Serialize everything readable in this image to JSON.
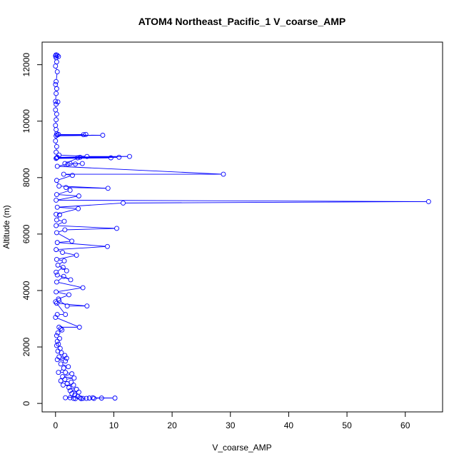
{
  "chart_data": {
    "type": "line",
    "title": "ATOM4 Northeast_Pacific_1 V_coarse_AMP",
    "xlabel": "V_coarse_AMP",
    "ylabel": "Altitude (m)",
    "xlim": [
      -2.3,
      66.4
    ],
    "ylim": [
      -300,
      12800
    ],
    "x_ticks": [
      0,
      10,
      20,
      30,
      40,
      50,
      60
    ],
    "y_ticks": [
      0,
      2000,
      4000,
      6000,
      8000,
      10000,
      12000
    ],
    "series": [
      {
        "color": "#0000ff",
        "marker": "open-circle",
        "points": [
          [
            0.1,
            12350
          ],
          [
            0.3,
            12330
          ],
          [
            0.0,
            12310
          ],
          [
            0.5,
            12290
          ],
          [
            0.1,
            12250
          ],
          [
            0.2,
            12100
          ],
          [
            0.0,
            11950
          ],
          [
            0.3,
            11750
          ],
          [
            0.1,
            11400
          ],
          [
            0.0,
            11300
          ],
          [
            0.2,
            11150
          ],
          [
            0.1,
            10980
          ],
          [
            0.0,
            10700
          ],
          [
            0.4,
            10680
          ],
          [
            0.1,
            10600
          ],
          [
            0.0,
            10400
          ],
          [
            0.2,
            10250
          ],
          [
            0.1,
            10050
          ],
          [
            0.0,
            9850
          ],
          [
            0.1,
            9700
          ],
          [
            0.2,
            9550
          ],
          [
            0.5,
            9530
          ],
          [
            4.8,
            9520
          ],
          [
            5.2,
            9530
          ],
          [
            0.3,
            9510
          ],
          [
            8.1,
            9500
          ],
          [
            0.1,
            9480
          ],
          [
            0.0,
            9300
          ],
          [
            0.2,
            9100
          ],
          [
            0.1,
            8900
          ],
          [
            0.6,
            8800
          ],
          [
            5.4,
            8750
          ],
          [
            12.7,
            8750
          ],
          [
            0.3,
            8720
          ],
          [
            10.9,
            8720
          ],
          [
            3.8,
            8700
          ],
          [
            0.2,
            8700
          ],
          [
            9.5,
            8700
          ],
          [
            0.1,
            8680
          ],
          [
            4.2,
            8720
          ],
          [
            1.6,
            8500
          ],
          [
            2.5,
            8500
          ],
          [
            3.4,
            8480
          ],
          [
            4.6,
            8500
          ],
          [
            2.1,
            8480
          ],
          [
            0.3,
            8400
          ],
          [
            28.8,
            8120
          ],
          [
            1.4,
            8120
          ],
          [
            2.9,
            8080
          ],
          [
            0.2,
            7900
          ],
          [
            0.6,
            7700
          ],
          [
            9.0,
            7620
          ],
          [
            1.8,
            7650
          ],
          [
            2.5,
            7550
          ],
          [
            0.2,
            7400
          ],
          [
            4.0,
            7350
          ],
          [
            0.1,
            7200
          ],
          [
            64.0,
            7150
          ],
          [
            11.6,
            7100
          ],
          [
            0.3,
            6950
          ],
          [
            3.9,
            6900
          ],
          [
            0.1,
            6700
          ],
          [
            0.7,
            6680
          ],
          [
            0.2,
            6500
          ],
          [
            1.5,
            6450
          ],
          [
            0.1,
            6300
          ],
          [
            10.5,
            6200
          ],
          [
            1.6,
            6150
          ],
          [
            0.2,
            6050
          ],
          [
            2.8,
            5750
          ],
          [
            0.3,
            5700
          ],
          [
            8.9,
            5560
          ],
          [
            0.1,
            5450
          ],
          [
            1.2,
            5350
          ],
          [
            3.6,
            5250
          ],
          [
            0.2,
            5100
          ],
          [
            1.5,
            5050
          ],
          [
            0.4,
            4900
          ],
          [
            1.9,
            4700
          ],
          [
            1.3,
            4820
          ],
          [
            0.1,
            4650
          ],
          [
            0.3,
            4550
          ],
          [
            2.6,
            4380
          ],
          [
            1.4,
            4500
          ],
          [
            0.2,
            4300
          ],
          [
            4.7,
            4100
          ],
          [
            0.1,
            3950
          ],
          [
            2.3,
            3850
          ],
          [
            0.5,
            3700
          ],
          [
            0.2,
            3550
          ],
          [
            5.4,
            3450
          ],
          [
            2.0,
            3450
          ],
          [
            0.6,
            3650
          ],
          [
            0.0,
            3600
          ],
          [
            1.7,
            3150
          ],
          [
            0.3,
            3150
          ],
          [
            0.0,
            3050
          ],
          [
            4.1,
            2700
          ],
          [
            0.6,
            2700
          ],
          [
            0.9,
            2650
          ],
          [
            1.1,
            2600
          ],
          [
            0.4,
            2500
          ],
          [
            0.2,
            2400
          ],
          [
            0.7,
            2300
          ],
          [
            0.3,
            2200
          ],
          [
            0.5,
            2100
          ],
          [
            0.2,
            2050
          ],
          [
            0.8,
            1950
          ],
          [
            0.4,
            1850
          ],
          [
            1.0,
            1800
          ],
          [
            1.6,
            1700
          ],
          [
            0.6,
            1650
          ],
          [
            1.9,
            1600
          ],
          [
            0.3,
            1550
          ],
          [
            1.7,
            1500
          ],
          [
            0.9,
            1400
          ],
          [
            2.2,
            1300
          ],
          [
            1.4,
            1250
          ],
          [
            0.5,
            1100
          ],
          [
            1.7,
            1100
          ],
          [
            2.8,
            1050
          ],
          [
            1.2,
            950
          ],
          [
            3.2,
            900
          ],
          [
            1.6,
            850
          ],
          [
            0.9,
            800
          ],
          [
            2.7,
            750
          ],
          [
            2.0,
            700
          ],
          [
            1.3,
            650
          ],
          [
            3.1,
            650
          ],
          [
            2.3,
            560
          ],
          [
            3.6,
            500
          ],
          [
            2.5,
            450
          ],
          [
            4.0,
            400
          ],
          [
            2.8,
            350
          ],
          [
            3.3,
            300
          ],
          [
            3.8,
            250
          ],
          [
            1.7,
            200
          ],
          [
            2.5,
            200
          ],
          [
            3.1,
            180
          ],
          [
            3.4,
            170
          ],
          [
            4.2,
            200
          ],
          [
            4.7,
            180
          ],
          [
            4.4,
            170
          ],
          [
            5.3,
            180
          ],
          [
            5.8,
            190
          ],
          [
            6.6,
            180
          ],
          [
            7.9,
            190
          ],
          [
            10.2,
            190
          ],
          [
            6.4,
            200
          ]
        ]
      }
    ],
    "grid": false,
    "legend": "none"
  }
}
